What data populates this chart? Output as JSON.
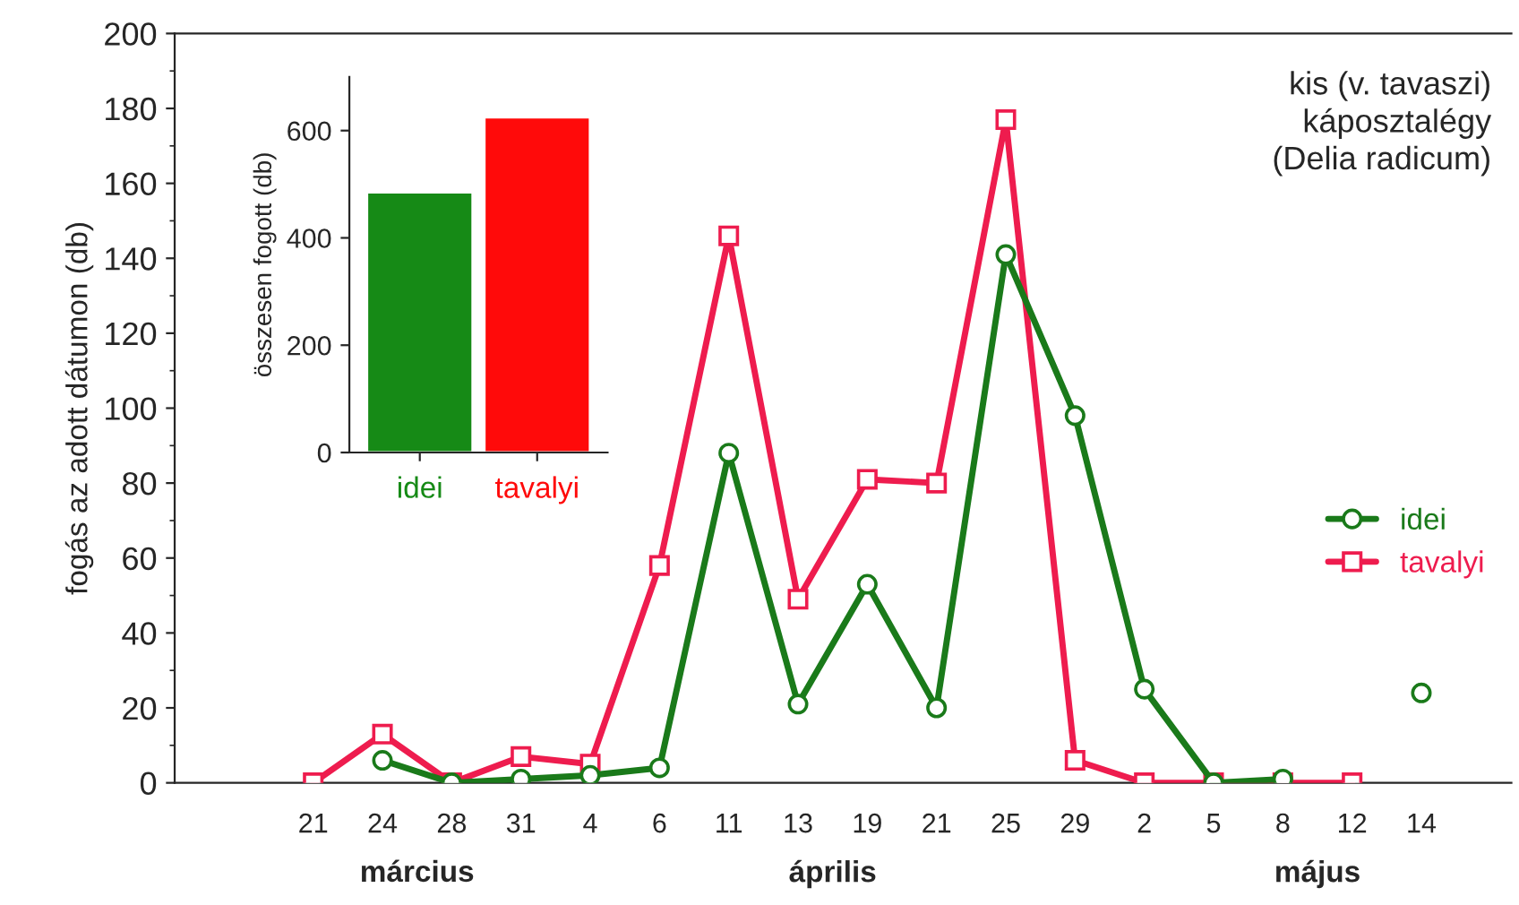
{
  "chart_data": [
    {
      "type": "line",
      "title": "kis (v. tavaszi)\nkáposztalégy\n(Delia radicum)",
      "ylabel": "fogás az adott dátumon (db)",
      "categories": [
        "21",
        "24",
        "28",
        "31",
        "4",
        "6",
        "11",
        "13",
        "19",
        "21",
        "25",
        "29",
        "2",
        "5",
        "8",
        "12",
        "14"
      ],
      "series": [
        {
          "name": "idei",
          "color": "#1a7a1a",
          "marker": "circle",
          "values": [
            null,
            6,
            0,
            1,
            2,
            4,
            88,
            21,
            53,
            20,
            141,
            98,
            25,
            0,
            1,
            null,
            24
          ]
        },
        {
          "name": "tavalyi",
          "color": "#ee1c4e",
          "marker": "square",
          "values": [
            0,
            13,
            0,
            7,
            5,
            58,
            146,
            49,
            81,
            80,
            177,
            6,
            0,
            0,
            0,
            0,
            null
          ]
        }
      ],
      "ylim": [
        0,
        200
      ],
      "yticks": [
        0,
        20,
        40,
        60,
        80,
        100,
        120,
        140,
        160,
        180,
        200
      ],
      "grid": false,
      "legend": "right",
      "annotations": [
        "március",
        "április",
        "május"
      ]
    },
    {
      "type": "bar",
      "ylabel": "összesen fogott (db)",
      "categories": [
        "idei",
        "tavalyi"
      ],
      "colors": [
        "#168a16",
        "#ff0a0a"
      ],
      "values": [
        485,
        625
      ],
      "ylim": [
        0,
        700
      ],
      "yticks": [
        0,
        200,
        400,
        600
      ],
      "grid": false
    }
  ]
}
